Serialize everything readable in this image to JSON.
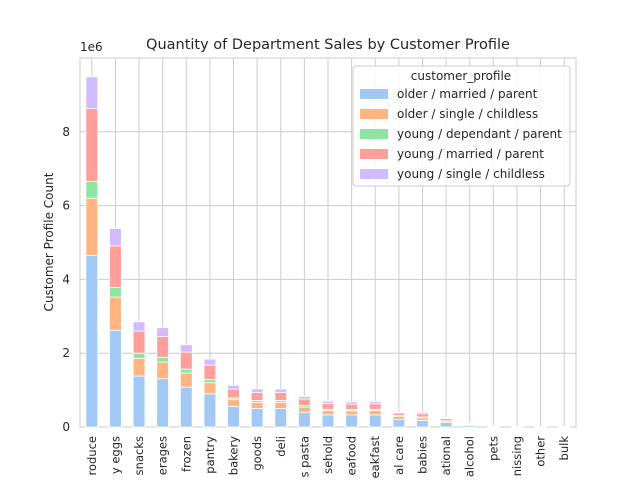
{
  "chart_data": {
    "type": "bar",
    "stacked": true,
    "title": "Quantity of Department Sales by Customer Profile",
    "xlabel": "",
    "ylabel": "Customer Profile Count",
    "y_scale_label": "1e6",
    "ylim": [
      0,
      10000000.0
    ],
    "yticks": [
      0,
      2,
      4,
      6,
      8
    ],
    "grid": true,
    "legend": {
      "title": "customer_profile",
      "placement": "top-right"
    },
    "categories": [
      "produce",
      "dairy eggs",
      "snacks",
      "beverages",
      "frozen",
      "pantry",
      "bakery",
      "canned goods",
      "deli",
      "dry goods pasta",
      "household",
      "meat seafood",
      "breakfast",
      "personal care",
      "babies",
      "international",
      "alcohol",
      "pets",
      "missing",
      "other",
      "bulk"
    ],
    "category_labels_visible": [
      "roduce",
      "y eggs",
      "snacks",
      "erages",
      "frozen",
      "pantry",
      "bakery",
      "goods",
      "deli",
      "s pasta",
      "sehold",
      "eafood",
      "eakfast",
      "al care",
      "babies",
      "ational",
      "alcohol",
      "pets",
      "nissing",
      "other",
      "bulk"
    ],
    "series": [
      {
        "name": "older / married / parent",
        "color": "#a1c9f4",
        "values": [
          4650000,
          2620000,
          1380000,
          1310000,
          1080000,
          900000,
          560000,
          500000,
          500000,
          400000,
          330000,
          330000,
          330000,
          200000,
          180000,
          120000,
          45000,
          12000,
          8000,
          5000,
          4000
        ]
      },
      {
        "name": "older / single / childless",
        "color": "#ffb482",
        "values": [
          1550000,
          900000,
          480000,
          450000,
          380000,
          300000,
          180000,
          170000,
          170000,
          140000,
          120000,
          110000,
          120000,
          90000,
          70000,
          40000,
          15000,
          6000,
          3000,
          2000,
          1000
        ]
      },
      {
        "name": "young / dependant / parent",
        "color": "#8de5a1",
        "values": [
          450000,
          260000,
          140000,
          130000,
          110000,
          90000,
          50000,
          50000,
          50000,
          40000,
          30000,
          30000,
          30000,
          20000,
          20000,
          10000,
          5000,
          1000,
          1000,
          1000,
          1000
        ]
      },
      {
        "name": "young / married / parent",
        "color": "#ff9f9b",
        "values": [
          1980000,
          1130000,
          600000,
          560000,
          460000,
          390000,
          240000,
          220000,
          220000,
          180000,
          160000,
          150000,
          150000,
          70000,
          90000,
          60000,
          20000,
          6000,
          3000,
          2000,
          2000
        ]
      },
      {
        "name": "young / single / childless",
        "color": "#d0bbff",
        "values": [
          860000,
          470000,
          250000,
          240000,
          200000,
          160000,
          100000,
          90000,
          90000,
          70000,
          60000,
          60000,
          60000,
          20000,
          40000,
          20000,
          10000,
          3000,
          2000,
          1000,
          1000
        ]
      }
    ]
  }
}
